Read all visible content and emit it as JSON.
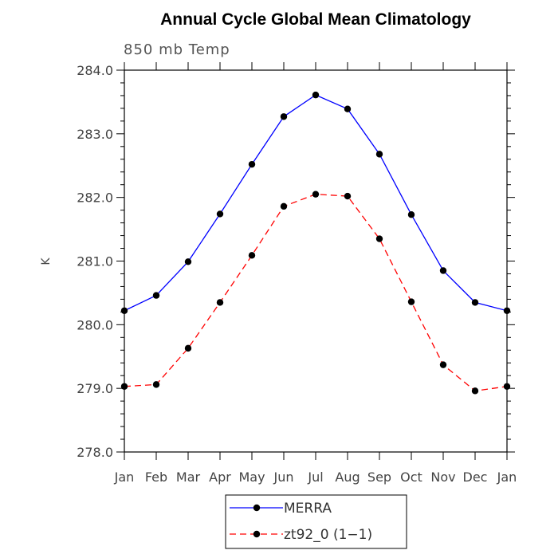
{
  "chart_data": {
    "type": "line",
    "title": "Annual Cycle Global Mean Climatology",
    "subtitle": "850 mb Temp",
    "ylabel": "K",
    "xlabel": "",
    "ylim": [
      278.0,
      284.0
    ],
    "yticks": [
      278.0,
      279.0,
      280.0,
      281.0,
      282.0,
      283.0,
      284.0
    ],
    "ytick_labels": [
      "278.0",
      "279.0",
      "280.0",
      "281.0",
      "282.0",
      "283.0",
      "284.0"
    ],
    "categories": [
      "Jan",
      "Feb",
      "Mar",
      "Apr",
      "May",
      "Jun",
      "Jul",
      "Aug",
      "Sep",
      "Oct",
      "Nov",
      "Dec",
      "Jan"
    ],
    "grid": false,
    "legend_position": "bottom-center",
    "series": [
      {
        "name": "MERRA",
        "color": "#0000ff",
        "dash": "solid",
        "values": [
          280.22,
          280.46,
          280.99,
          281.74,
          282.52,
          283.27,
          283.61,
          283.39,
          282.68,
          281.73,
          280.85,
          280.35,
          280.22
        ]
      },
      {
        "name": "zt92_0 (1−1)",
        "color": "#ff0000",
        "dash": "dashed",
        "values": [
          279.03,
          279.06,
          279.63,
          280.35,
          281.09,
          281.86,
          282.05,
          282.02,
          281.35,
          280.36,
          279.37,
          278.96,
          279.03
        ]
      }
    ]
  }
}
